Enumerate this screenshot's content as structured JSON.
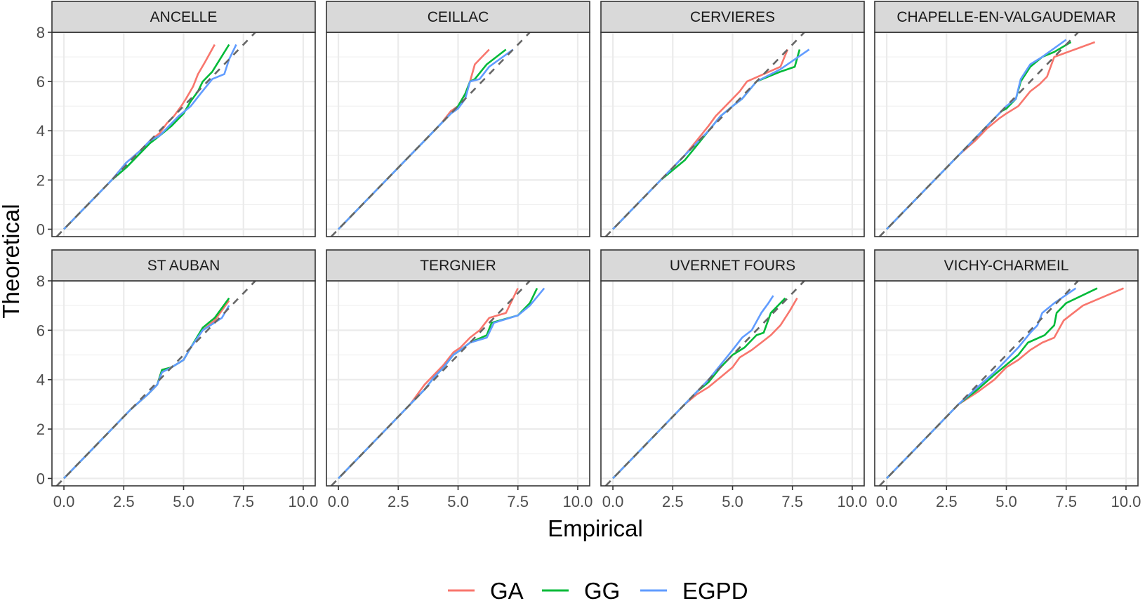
{
  "chart_data": {
    "type": "line",
    "layout": "faceted 2x4",
    "xlabel": "Empirical",
    "ylabel": "Theoretical",
    "xlim": [
      -0.5,
      10.5
    ],
    "ylim": [
      -0.3,
      8.0
    ],
    "x_ticks": [
      "0.0",
      "2.5",
      "5.0",
      "7.5",
      "10.0"
    ],
    "x_tick_values": [
      0,
      2.5,
      5,
      7.5,
      10
    ],
    "y_ticks": [
      "0",
      "2",
      "4",
      "6",
      "8"
    ],
    "y_tick_values": [
      0,
      2,
      4,
      6,
      8
    ],
    "grid": true,
    "reference_line": {
      "type": "identity",
      "style": "dashed",
      "color": "#666666"
    },
    "legend": {
      "position": "bottom",
      "entries": [
        "GA",
        "GG",
        "EGPD"
      ]
    },
    "series_colors": {
      "GA": "#F8766D",
      "GG": "#00BA38",
      "EGPD": "#619CFF"
    },
    "panels": [
      {
        "title": "ANCELLE",
        "series": [
          {
            "name": "GA",
            "x": [
              0,
              1,
              2,
              2.6,
              3.2,
              3.6,
              4.0,
              4.3,
              4.6,
              4.9,
              5.1,
              5.4,
              5.6,
              5.9,
              6.3
            ],
            "y": [
              0,
              1,
              2,
              2.7,
              3.2,
              3.6,
              3.9,
              4.3,
              4.6,
              5.0,
              5.3,
              5.8,
              6.3,
              6.8,
              7.5
            ]
          },
          {
            "name": "GG",
            "x": [
              0,
              1,
              2,
              2.6,
              3.2,
              3.6,
              4.0,
              4.5,
              5.0,
              5.3,
              5.6,
              5.8,
              6.2,
              6.9
            ],
            "y": [
              0,
              1,
              2,
              2.5,
              3.1,
              3.5,
              3.8,
              4.2,
              4.7,
              5.2,
              5.6,
              6.0,
              6.4,
              7.5
            ]
          },
          {
            "name": "EGPD",
            "x": [
              0,
              1,
              2,
              2.6,
              3.2,
              3.6,
              4.0,
              4.4,
              4.8,
              5.3,
              5.7,
              6.2,
              6.7,
              6.9,
              7.2
            ],
            "y": [
              0,
              1,
              2,
              2.7,
              3.2,
              3.6,
              3.8,
              4.2,
              4.6,
              5.0,
              5.5,
              6.1,
              6.3,
              6.9,
              7.5
            ]
          }
        ]
      },
      {
        "title": "CEILLAC",
        "series": [
          {
            "name": "GA",
            "x": [
              0,
              1,
              2,
              3,
              3.8,
              4.3,
              4.7,
              5.0,
              5.3,
              5.5,
              5.7,
              6.3
            ],
            "y": [
              0,
              1,
              2,
              3,
              3.8,
              4.3,
              4.8,
              5.0,
              5.5,
              6.0,
              6.7,
              7.3
            ]
          },
          {
            "name": "GG",
            "x": [
              0,
              1,
              2,
              3,
              3.8,
              4.3,
              4.7,
              5.0,
              5.3,
              5.5,
              5.7,
              6.2,
              7.0
            ],
            "y": [
              0,
              1,
              2,
              3,
              3.8,
              4.3,
              4.7,
              5.0,
              5.5,
              6.0,
              6.1,
              6.7,
              7.3
            ]
          },
          {
            "name": "EGPD",
            "x": [
              0,
              1,
              2,
              3,
              3.8,
              4.3,
              4.7,
              5.0,
              5.3,
              5.5,
              5.9,
              6.3,
              7.3
            ],
            "y": [
              0,
              1,
              2,
              3,
              3.8,
              4.3,
              4.7,
              4.9,
              5.3,
              6.0,
              6.1,
              6.6,
              7.3
            ]
          }
        ]
      },
      {
        "title": "CERVIERES",
        "series": [
          {
            "name": "GA",
            "x": [
              0,
              1,
              2,
              3,
              3.5,
              4.0,
              4.3,
              4.6,
              5.0,
              5.3,
              5.6,
              6.3,
              7.0,
              7.3
            ],
            "y": [
              0,
              1,
              2,
              3,
              3.6,
              4.2,
              4.6,
              4.9,
              5.3,
              5.6,
              6.0,
              6.3,
              6.6,
              7.3
            ]
          },
          {
            "name": "GG",
            "x": [
              0,
              1,
              2,
              3,
              3.5,
              4.0,
              4.5,
              5.0,
              5.4,
              6.0,
              7.0,
              7.6,
              7.8
            ],
            "y": [
              0,
              1,
              2,
              2.8,
              3.4,
              4.0,
              4.6,
              5.0,
              5.3,
              6.0,
              6.4,
              6.6,
              7.3
            ]
          },
          {
            "name": "EGPD",
            "x": [
              0,
              1,
              2,
              3,
              3.5,
              4.0,
              4.5,
              5.0,
              5.4,
              6.0,
              7.0,
              8.2
            ],
            "y": [
              0,
              1,
              2,
              3,
              3.5,
              4.0,
              4.6,
              5.0,
              5.3,
              6.0,
              6.5,
              7.3
            ]
          }
        ]
      },
      {
        "title": "CHAPELLE-EN-VALGAUDEMAR",
        "series": [
          {
            "name": "GA",
            "x": [
              0,
              1,
              2,
              3,
              3.7,
              4.2,
              4.7,
              5.0,
              5.5,
              6.0,
              6.4,
              6.7,
              7.0,
              8.7
            ],
            "y": [
              0,
              1,
              2,
              3,
              3.6,
              4.1,
              4.5,
              4.7,
              5.0,
              5.6,
              5.9,
              6.2,
              7.0,
              7.6
            ]
          },
          {
            "name": "GG",
            "x": [
              0,
              1,
              2,
              3,
              3.7,
              4.3,
              4.8,
              5.0,
              5.4,
              5.6,
              6.0,
              6.5,
              7.0,
              7.7
            ],
            "y": [
              0,
              1,
              2,
              3,
              3.7,
              4.3,
              4.8,
              4.9,
              5.3,
              6.0,
              6.6,
              7.0,
              7.2,
              7.6
            ]
          },
          {
            "name": "EGPD",
            "x": [
              0,
              1,
              2,
              3,
              3.7,
              4.3,
              4.8,
              5.0,
              5.4,
              5.6,
              6.0,
              6.5,
              7.5
            ],
            "y": [
              0,
              1,
              2,
              3,
              3.7,
              4.3,
              4.8,
              5.0,
              5.3,
              6.1,
              6.7,
              7.0,
              7.7
            ]
          }
        ]
      },
      {
        "title": "ST AUBAN",
        "series": [
          {
            "name": "GA",
            "x": [
              0,
              1,
              2,
              2.8,
              3.5,
              3.9,
              4.1,
              4.5,
              5.0,
              5.3,
              5.8,
              6.3,
              6.9
            ],
            "y": [
              0,
              1,
              2,
              2.8,
              3.4,
              3.8,
              4.4,
              4.5,
              4.8,
              5.3,
              6.0,
              6.4,
              7.2
            ]
          },
          {
            "name": "GG",
            "x": [
              0,
              1,
              2,
              2.8,
              3.5,
              3.9,
              4.1,
              4.5,
              5.0,
              5.3,
              5.8,
              6.3,
              6.9
            ],
            "y": [
              0,
              1,
              2,
              2.8,
              3.4,
              3.8,
              4.4,
              4.5,
              4.8,
              5.3,
              6.1,
              6.5,
              7.3
            ]
          },
          {
            "name": "EGPD",
            "x": [
              0,
              1,
              2,
              2.8,
              3.5,
              3.9,
              4.1,
              4.5,
              5.0,
              5.3,
              5.8,
              6.6,
              6.9
            ],
            "y": [
              0,
              1,
              2,
              2.8,
              3.4,
              3.8,
              4.3,
              4.5,
              4.8,
              5.3,
              6.0,
              6.5,
              7.0
            ]
          }
        ]
      },
      {
        "title": "TERGNIER",
        "series": [
          {
            "name": "GA",
            "x": [
              0,
              1,
              2,
              3,
              3.6,
              4.0,
              4.4,
              4.8,
              5.1,
              5.5,
              5.9,
              6.3,
              7.0,
              7.5
            ],
            "y": [
              0,
              1,
              2,
              3,
              3.8,
              4.2,
              4.6,
              5.1,
              5.3,
              5.7,
              6.0,
              6.5,
              6.7,
              7.7
            ]
          },
          {
            "name": "GG",
            "x": [
              0,
              1,
              2,
              3,
              3.6,
              4.0,
              4.4,
              4.8,
              5.1,
              5.5,
              6.2,
              6.4,
              7.5,
              8.0,
              8.3
            ],
            "y": [
              0,
              1,
              2,
              3,
              3.6,
              4.1,
              4.5,
              5.0,
              5.2,
              5.5,
              5.8,
              6.3,
              6.6,
              7.1,
              7.7
            ]
          },
          {
            "name": "EGPD",
            "x": [
              0,
              1,
              2,
              3,
              3.6,
              4.0,
              4.4,
              4.8,
              5.1,
              5.5,
              6.2,
              6.5,
              7.5,
              8.0,
              8.6
            ],
            "y": [
              0,
              1,
              2,
              3,
              3.6,
              4.1,
              4.5,
              5.0,
              5.2,
              5.5,
              5.7,
              6.3,
              6.6,
              7.0,
              7.7
            ]
          }
        ]
      },
      {
        "title": "UVERNET FOURS",
        "series": [
          {
            "name": "GA",
            "x": [
              0,
              1,
              2,
              3,
              3.5,
              4.0,
              4.5,
              5.0,
              5.3,
              5.8,
              6.2,
              6.6,
              7.0,
              7.4,
              7.7
            ],
            "y": [
              0,
              1,
              2,
              3,
              3.4,
              3.7,
              4.1,
              4.5,
              4.9,
              5.2,
              5.5,
              5.8,
              6.2,
              6.8,
              7.3
            ]
          },
          {
            "name": "GG",
            "x": [
              0,
              1,
              2,
              3,
              3.5,
              4.0,
              4.5,
              5.0,
              5.5,
              6.0,
              6.3,
              6.6,
              7.2
            ],
            "y": [
              0,
              1,
              2,
              3,
              3.5,
              3.9,
              4.5,
              5.0,
              5.3,
              5.8,
              5.9,
              6.7,
              7.3
            ]
          },
          {
            "name": "EGPD",
            "x": [
              0,
              1,
              2,
              3,
              3.5,
              4.0,
              4.5,
              5.0,
              5.4,
              5.8,
              6.2,
              6.5,
              6.7
            ],
            "y": [
              0,
              1,
              2,
              3,
              3.5,
              4.0,
              4.6,
              5.2,
              5.7,
              6.0,
              6.7,
              7.1,
              7.4
            ]
          }
        ]
      },
      {
        "title": "VICHY-CHARMEIL",
        "series": [
          {
            "name": "GA",
            "x": [
              0,
              1,
              2,
              3,
              3.8,
              4.5,
              5.0,
              5.5,
              6.0,
              6.5,
              7.0,
              7.4,
              8.2,
              9.9
            ],
            "y": [
              0,
              1,
              2,
              3,
              3.5,
              4.0,
              4.5,
              4.8,
              5.2,
              5.5,
              5.7,
              6.4,
              7.0,
              7.7
            ]
          },
          {
            "name": "GG",
            "x": [
              0,
              1,
              2,
              3,
              3.8,
              4.5,
              5.0,
              5.5,
              5.9,
              6.6,
              7.0,
              7.1,
              7.5,
              8.8
            ],
            "y": [
              0,
              1,
              2,
              3,
              3.6,
              4.2,
              4.6,
              5.0,
              5.5,
              5.8,
              6.2,
              6.7,
              7.1,
              7.7
            ]
          },
          {
            "name": "EGPD",
            "x": [
              0,
              1,
              2,
              3,
              3.8,
              4.5,
              5.0,
              5.5,
              6.0,
              6.3,
              6.5,
              7.0,
              7.9
            ],
            "y": [
              0,
              1,
              2,
              3,
              3.7,
              4.3,
              4.8,
              5.3,
              5.9,
              6.2,
              6.7,
              7.1,
              7.7
            ]
          }
        ]
      }
    ]
  }
}
